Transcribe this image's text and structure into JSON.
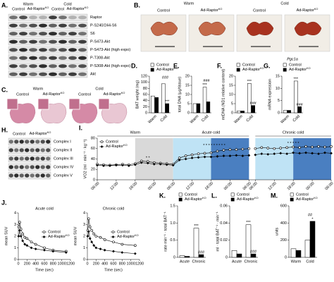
{
  "blots": {
    "A": {
      "label": "A.",
      "groups": [
        "Warm",
        "Cold"
      ],
      "columns": [
        "Control",
        {
          "text": "Ad-Raptor",
          "sup": "KO"
        },
        "Control",
        {
          "text": "Ad-Raptor",
          "sup": "KO"
        }
      ],
      "rows": [
        "Raptor",
        "P-S240/244-S6",
        "S6",
        "P-S473-Akt",
        "P-S473-Akt (high expo)",
        "P-T308-Akt",
        "P-S308-Akt (high expo)",
        "Akt"
      ]
    },
    "H": {
      "label": "H.",
      "columns": [
        "Control",
        {
          "text": "Ad-Raptor",
          "sup": "KO"
        }
      ],
      "rows": [
        "Complex I",
        "Complex II",
        "Complex III",
        "Complex IV",
        "Complex V"
      ]
    }
  },
  "photos": {
    "B": {
      "label": "B.",
      "groups": [
        "Warm",
        "Cold"
      ],
      "columns": [
        "Control",
        {
          "text": "Ad-Raptor",
          "sup": "KO"
        },
        "Control",
        {
          "text": "Ad-Raptor",
          "sup": "KO"
        }
      ]
    },
    "C": {
      "label": "C.",
      "groups": [
        "Warm",
        "Cold"
      ],
      "columns": [
        "Control",
        {
          "text": "Ad-Raptor",
          "sup": "KO"
        },
        "Control",
        {
          "text": "Ad-Raptor",
          "sup": "KO"
        }
      ]
    }
  },
  "chart_data": [
    {
      "type": "bar",
      "label": "D.",
      "ylabel": "BAT weight (mg)",
      "categories": [
        "Warm",
        "Cold"
      ],
      "series": [
        {
          "name": "Control",
          "color": "#ffffff",
          "values": [
            55,
            95
          ],
          "significance": [
            null,
            null
          ]
        },
        {
          "name": {
            "text": "Ad-Raptor",
            "sup": "KO"
          },
          "color": "#000000",
          "values": [
            50,
            30
          ],
          "significance": [
            null,
            "***"
          ]
        }
      ],
      "group_marks": [
        null,
        "###"
      ],
      "ylim": [
        0,
        120
      ],
      "yticks": [
        0,
        20,
        40,
        60,
        80,
        100,
        120
      ],
      "legend": "top"
    },
    {
      "type": "bar",
      "label": "E.",
      "ylabel": "total DNA (µg/tissue)",
      "categories": [
        "Warm",
        "Cold"
      ],
      "series": [
        {
          "name": "Control",
          "color": "#ffffff",
          "values": [
            5,
            14
          ],
          "significance": [
            null,
            "***"
          ]
        },
        {
          "name": {
            "text": "Ad-Raptor",
            "sup": "KO"
          },
          "color": "#000000",
          "values": [
            5,
            6
          ],
          "significance": [
            null,
            null
          ]
        }
      ],
      "group_marks": [
        null,
        "###"
      ],
      "ylim": [
        0,
        20
      ],
      "yticks": [
        0,
        5,
        10,
        15,
        20
      ]
    },
    {
      "type": "bar",
      "label": "F.",
      "ylabel": "mtDNA (ND1 relative content)",
      "categories": [
        "Warm",
        "Cold"
      ],
      "series": [
        {
          "name": "Control",
          "color": "#ffffff",
          "values": [
            1,
            16
          ],
          "significance": [
            null,
            "***"
          ]
        },
        {
          "name": {
            "text": "Ad-Raptor",
            "sup": "KO"
          },
          "color": "#000000",
          "values": [
            1,
            4
          ],
          "significance": [
            null,
            "###"
          ]
        }
      ],
      "ylim": [
        0,
        20
      ],
      "yticks": [
        0,
        5,
        10,
        15,
        20
      ],
      "legend": "top"
    },
    {
      "type": "bar",
      "label": "G.",
      "title": "Pgc1a",
      "ylabel": "mRNA expression",
      "categories": [
        "Warm",
        "Cold"
      ],
      "series": [
        {
          "name": "Control",
          "color": "#ffffff",
          "values": [
            1,
            13
          ],
          "significance": [
            null,
            "***"
          ]
        },
        {
          "name": {
            "text": "Ad-Raptor",
            "sup": "KO"
          },
          "color": "#000000",
          "values": [
            1,
            2.5
          ],
          "significance": [
            null,
            "###"
          ]
        }
      ],
      "ylim": [
        0,
        15
      ],
      "yticks": [
        0,
        5,
        10,
        15
      ],
      "legend": "top"
    },
    {
      "type": "line",
      "label": "I.",
      "ylabel": "VO2 (ml · min⁻¹ · kg⁻¹)",
      "x": [
        0,
        2,
        4,
        6,
        8,
        10,
        12,
        14,
        16,
        18,
        20,
        22,
        24,
        26,
        28,
        30,
        32,
        34,
        36,
        38,
        40,
        42,
        44,
        46,
        48,
        49,
        50,
        52,
        54,
        56,
        58,
        60,
        62,
        64,
        66,
        68,
        70,
        72,
        74
      ],
      "xlim": [
        0,
        74
      ],
      "xticks": [
        {
          "value": 0,
          "label": "06:00"
        },
        {
          "value": 6,
          "label": "12:00"
        },
        {
          "value": 12,
          "label": "18:00"
        },
        {
          "value": 18,
          "label": "00:00"
        },
        {
          "value": 24,
          "label": "06:00"
        },
        {
          "value": 30,
          "label": "12:00"
        },
        {
          "value": 36,
          "label": "18:00"
        },
        {
          "value": 42,
          "label": "00:00"
        },
        {
          "value": 48,
          "label": "06:00"
        },
        {
          "value": 50,
          "label": "06:00"
        },
        {
          "value": 56,
          "label": "12:00"
        },
        {
          "value": 62,
          "label": "18:00"
        },
        {
          "value": 68,
          "label": "00:00"
        },
        {
          "value": 74,
          "label": "06:00"
        }
      ],
      "ylim": [
        0,
        80
      ],
      "yticks": [
        0,
        20,
        40,
        60,
        80
      ],
      "shading": [
        {
          "color": "#d9d9d9",
          "xrange": [
            12,
            24
          ]
        },
        {
          "color": "#bfe3f5",
          "xrange": [
            24,
            36
          ]
        },
        {
          "color": "#4a7fc1",
          "xrange": [
            36,
            48
          ]
        },
        {
          "color": "#bfe3f5",
          "xrange": [
            50,
            62
          ]
        },
        {
          "color": "#4a7fc1",
          "xrange": [
            62,
            74
          ]
        }
      ],
      "sections": [
        {
          "label": "Warm",
          "xrange": [
            0,
            24
          ]
        },
        {
          "label": "Acute cold",
          "xrange": [
            24,
            48
          ]
        },
        {
          "label": "Chronic cold",
          "xrange": [
            50,
            74
          ]
        }
      ],
      "series": [
        {
          "name": "Control",
          "color": "#000000",
          "marker": "circle-open",
          "values": [
            30,
            29,
            28,
            29,
            30,
            29,
            31,
            36,
            35,
            33,
            32,
            31,
            30,
            42,
            46,
            48,
            50,
            51,
            52,
            55,
            57,
            58,
            58,
            59,
            60,
            null,
            60,
            62,
            61,
            60,
            61,
            62,
            63,
            62,
            64,
            63,
            64,
            63,
            64
          ]
        },
        {
          "name": {
            "text": "Ad-Raptor",
            "sup": "KO"
          },
          "color": "#000000",
          "marker": "diamond",
          "values": [
            28,
            27,
            27,
            28,
            28,
            27,
            29,
            33,
            32,
            30,
            30,
            29,
            28,
            38,
            40,
            42,
            43,
            44,
            44,
            45,
            46,
            46,
            47,
            46,
            47,
            null,
            48,
            50,
            49,
            50,
            51,
            50,
            52,
            51,
            52,
            51,
            50,
            52,
            51
          ]
        }
      ],
      "annotations": [
        {
          "text": "* *",
          "x": 16,
          "y": 42
        },
        {
          "text": "* * * * * * * * *",
          "x": 37,
          "y": 66
        },
        {
          "text": "* * * * *",
          "x": 62,
          "y": 70
        }
      ],
      "legend": "inside-top-left"
    },
    {
      "type": "line",
      "label": "J.",
      "title": "Acute cold",
      "ylabel": "mean SUV",
      "xlabel": "Time (sec)",
      "x": [
        10,
        30,
        60,
        100,
        150,
        200,
        300,
        400,
        600,
        800,
        1100
      ],
      "xlim": [
        0,
        1200
      ],
      "xticks": [
        0,
        200,
        400,
        600,
        800,
        1000,
        1200
      ],
      "ylim": [
        0,
        4
      ],
      "yticks": [
        0,
        1,
        2,
        3,
        4
      ],
      "series": [
        {
          "name": "Control",
          "color": "#000000",
          "marker": "circle-open",
          "values": [
            2.8,
            3.2,
            2.6,
            2.2,
            1.9,
            1.8,
            1.5,
            1.3,
            1.0,
            0.8,
            0.7
          ]
        },
        {
          "name": {
            "text": "Ad-Raptor",
            "sup": "KO"
          },
          "color": "#000000",
          "marker": "diamond",
          "values": [
            2.0,
            2.5,
            2.0,
            1.6,
            1.3,
            1.2,
            1.0,
            0.9,
            0.8,
            0.7,
            0.6
          ]
        }
      ],
      "legend": "inside-right"
    },
    {
      "type": "line",
      "title": "Chronic cold",
      "ylabel": "mean SUV",
      "xlabel": "Time (sec)",
      "x": [
        10,
        30,
        60,
        100,
        150,
        200,
        300,
        400,
        600,
        800,
        1100
      ],
      "xlim": [
        0,
        1200
      ],
      "xticks": [
        0,
        200,
        400,
        600,
        800,
        1000,
        1200
      ],
      "ylim": [
        0,
        4
      ],
      "yticks": [
        0,
        1,
        2,
        3,
        4
      ],
      "series": [
        {
          "name": "Control",
          "color": "#000000",
          "marker": "circle-open",
          "values": [
            2.5,
            3.5,
            2.8,
            2.5,
            2.2,
            2.0,
            1.9,
            1.7,
            1.5,
            1.3,
            1.2
          ]
        },
        {
          "name": {
            "text": "Ad-Raptor",
            "sup": "KO"
          },
          "color": "#000000",
          "marker": "diamond",
          "values": [
            2.0,
            2.4,
            1.8,
            1.5,
            1.2,
            1.0,
            0.9,
            0.8,
            0.7,
            0.6,
            0.5
          ]
        }
      ],
      "legend": "inside-right"
    },
    {
      "type": "bar",
      "label": "K.",
      "ylabel": "rate min⁻¹ · total BAT⁻¹",
      "categories": [
        "Acute",
        "Chronic"
      ],
      "series": [
        {
          "name": "Control",
          "color": "#ffffff",
          "values": [
            0.05,
            0.85
          ],
          "significance": [
            null,
            "***"
          ]
        },
        {
          "name": {
            "text": "Ad-Raptor",
            "sup": "KO"
          },
          "color": "#000000",
          "values": [
            0.03,
            0.08
          ],
          "significance": [
            null,
            "###"
          ]
        }
      ],
      "ylim": [
        0,
        1.5
      ],
      "yticks": [
        0,
        0.5,
        {
          "value": 1,
          "label": "1.0"
        },
        1.5
      ],
      "legend": "top"
    },
    {
      "type": "bar",
      "label": "L.",
      "ylabel": "ml · total BAT⁻¹ · min⁻¹",
      "categories": [
        "Acute",
        "Chronic"
      ],
      "series": [
        {
          "name": "Control",
          "color": "#ffffff",
          "values": [
            0.008,
            0.038
          ],
          "significance": [
            null,
            "***"
          ]
        },
        {
          "name": {
            "text": "Ad-Raptor",
            "sup": "KO"
          },
          "color": "#000000",
          "values": [
            0.004,
            0.004
          ],
          "significance": [
            null,
            "###"
          ]
        }
      ],
      "ylim": [
        0,
        0.06
      ],
      "yticks": [
        0,
        0.02,
        0.04,
        0.06
      ],
      "legend": "top"
    },
    {
      "type": "bar",
      "label": "M.",
      "ylabel": "units",
      "categories": [
        "Warm",
        "Cold"
      ],
      "series": [
        {
          "name": "Control",
          "color": "#ffffff",
          "values": [
            100,
            200
          ],
          "significance": [
            null,
            null
          ]
        },
        {
          "name": {
            "text": "Ad-Raptor",
            "sup": "KO"
          },
          "color": "#000000",
          "values": [
            80,
            420
          ],
          "significance": [
            null,
            "*"
          ]
        }
      ],
      "group_marks": [
        null,
        "##"
      ],
      "ylim": [
        0,
        600
      ],
      "yticks": [
        0,
        200,
        400,
        600
      ],
      "legend": "top"
    }
  ]
}
